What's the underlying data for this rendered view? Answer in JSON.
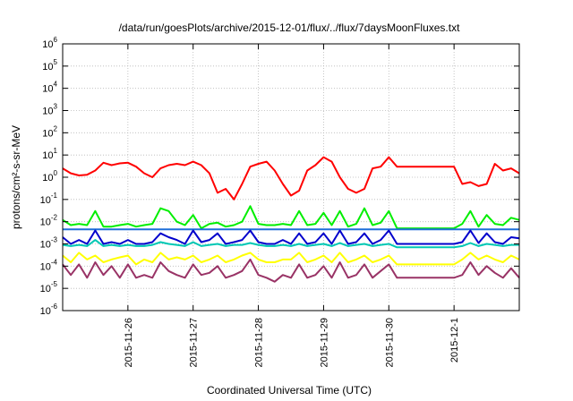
{
  "chart_data": {
    "type": "line",
    "title": "/data/run/goesPlots/archive/2015-12-01/flux/../flux/7daysMoonFluxes.txt",
    "xlabel": "Coordinated Universal Time (UTC)",
    "ylabel": "protons/cm²-s-sr-MeV",
    "yscale": "log",
    "ylim": [
      1e-06,
      1000000.0
    ],
    "xlim": [
      "2015-11-25T00:00",
      "2015-12-02T00:00"
    ],
    "grid": true,
    "x_tick_labels": [
      "2015-11-26",
      "2015-11-27",
      "2015-11-28",
      "2015-11-29",
      "2015-11-30",
      "2015-12-1"
    ],
    "x_tick_dates": [
      "2015-11-26T00:00",
      "2015-11-27T00:00",
      "2015-11-28T00:00",
      "2015-11-29T00:00",
      "2015-11-30T00:00",
      "2015-12-01T00:00"
    ],
    "y_tick_labels": [
      {
        "base": "10",
        "exp": "-6"
      },
      {
        "base": "10",
        "exp": "-5"
      },
      {
        "base": "10",
        "exp": "-4"
      },
      {
        "base": "10",
        "exp": "-3"
      },
      {
        "base": "10",
        "exp": "-2"
      },
      {
        "base": "10",
        "exp": "-1"
      },
      {
        "base": "10",
        "exp": "0"
      },
      {
        "base": "10",
        "exp": "1"
      },
      {
        "base": "10",
        "exp": "2"
      },
      {
        "base": "10",
        "exp": "3"
      },
      {
        "base": "10",
        "exp": "4"
      },
      {
        "base": "10",
        "exp": "5"
      },
      {
        "base": "10",
        "exp": "6"
      }
    ],
    "y_tick_values": [
      1e-06,
      1e-05,
      0.0001,
      0.001,
      0.01,
      0.1,
      1,
      10,
      100,
      1000,
      10000,
      100000,
      1000000
    ],
    "series": [
      {
        "color": "#ff0000",
        "x": [
          "2015-11-25T00:00",
          "2015-11-25T03:00",
          "2015-11-25T06:00",
          "2015-11-25T09:00",
          "2015-11-25T12:00",
          "2015-11-25T15:00",
          "2015-11-25T18:00",
          "2015-11-25T21:00",
          "2015-11-26T00:00",
          "2015-11-26T03:00",
          "2015-11-26T06:00",
          "2015-11-26T09:00",
          "2015-11-26T12:00",
          "2015-11-26T15:00",
          "2015-11-26T18:00",
          "2015-11-26T21:00",
          "2015-11-27T00:00",
          "2015-11-27T03:00",
          "2015-11-27T06:00",
          "2015-11-27T09:00",
          "2015-11-27T12:00",
          "2015-11-27T15:00",
          "2015-11-27T18:00",
          "2015-11-27T21:00",
          "2015-11-28T00:00",
          "2015-11-28T03:00",
          "2015-11-28T06:00",
          "2015-11-28T09:00",
          "2015-11-28T12:00",
          "2015-11-28T15:00",
          "2015-11-28T18:00",
          "2015-11-28T21:00",
          "2015-11-29T00:00",
          "2015-11-29T03:00",
          "2015-11-29T06:00",
          "2015-11-29T09:00",
          "2015-11-29T12:00",
          "2015-11-29T15:00",
          "2015-11-29T18:00",
          "2015-11-29T21:00",
          "2015-11-30T00:00",
          "2015-11-30T03:00",
          "2015-11-30T12:00",
          "2015-11-30T20:00",
          "2015-12-01T00:00",
          "2015-12-01T03:00",
          "2015-12-01T06:00",
          "2015-12-01T09:00",
          "2015-12-01T12:00",
          "2015-12-01T15:00",
          "2015-12-01T18:00",
          "2015-12-01T21:00",
          "2015-12-02T00:00"
        ],
        "values": [
          2.5,
          1.5,
          1.2,
          1.3,
          2.0,
          4.5,
          3.5,
          4.2,
          4.5,
          3.0,
          1.5,
          1.0,
          2.5,
          3.5,
          4.0,
          3.5,
          5.0,
          3.5,
          1.5,
          0.2,
          0.3,
          0.1,
          0.5,
          3.0,
          4.0,
          5.0,
          2.0,
          0.5,
          0.15,
          0.25,
          2.0,
          3.5,
          8.0,
          5.0,
          1.0,
          0.3,
          0.2,
          0.3,
          2.5,
          3.0,
          8.0,
          3.0,
          3.0,
          3.0,
          3.0,
          0.5,
          0.6,
          0.4,
          0.5,
          4.0,
          2.0,
          2.5,
          1.5
        ]
      },
      {
        "color": "#00ee00",
        "x": [
          "2015-11-25T00:00",
          "2015-11-25T03:00",
          "2015-11-25T06:00",
          "2015-11-25T09:00",
          "2015-11-25T12:00",
          "2015-11-25T15:00",
          "2015-11-25T18:00",
          "2015-11-25T21:00",
          "2015-11-26T00:00",
          "2015-11-26T03:00",
          "2015-11-26T06:00",
          "2015-11-26T09:00",
          "2015-11-26T12:00",
          "2015-11-26T15:00",
          "2015-11-26T18:00",
          "2015-11-26T21:00",
          "2015-11-27T00:00",
          "2015-11-27T03:00",
          "2015-11-27T06:00",
          "2015-11-27T09:00",
          "2015-11-27T12:00",
          "2015-11-27T15:00",
          "2015-11-27T18:00",
          "2015-11-27T21:00",
          "2015-11-28T00:00",
          "2015-11-28T03:00",
          "2015-11-28T06:00",
          "2015-11-28T09:00",
          "2015-11-28T12:00",
          "2015-11-28T15:00",
          "2015-11-28T18:00",
          "2015-11-28T21:00",
          "2015-11-29T00:00",
          "2015-11-29T03:00",
          "2015-11-29T06:00",
          "2015-11-29T09:00",
          "2015-11-29T12:00",
          "2015-11-29T15:00",
          "2015-11-29T18:00",
          "2015-11-29T21:00",
          "2015-11-30T00:00",
          "2015-11-30T03:00",
          "2015-11-30T12:00",
          "2015-11-30T20:00",
          "2015-12-01T00:00",
          "2015-12-01T03:00",
          "2015-12-01T06:00",
          "2015-12-01T09:00",
          "2015-12-01T12:00",
          "2015-12-01T15:00",
          "2015-12-01T18:00",
          "2015-12-01T21:00",
          "2015-12-02T00:00"
        ],
        "values": [
          0.012,
          0.007,
          0.008,
          0.007,
          0.03,
          0.006,
          0.006,
          0.007,
          0.008,
          0.006,
          0.007,
          0.008,
          0.04,
          0.03,
          0.01,
          0.007,
          0.02,
          0.005,
          0.008,
          0.009,
          0.006,
          0.007,
          0.01,
          0.05,
          0.008,
          0.007,
          0.007,
          0.008,
          0.007,
          0.03,
          0.007,
          0.008,
          0.025,
          0.007,
          0.03,
          0.006,
          0.008,
          0.04,
          0.007,
          0.009,
          0.03,
          0.005,
          0.005,
          0.005,
          0.005,
          0.008,
          0.03,
          0.006,
          0.02,
          0.008,
          0.007,
          0.015,
          0.012
        ]
      },
      {
        "color": "#1e6fd9",
        "x": [
          "2015-11-25T00:00",
          "2015-11-25T12:00",
          "2015-11-26T00:00",
          "2015-11-26T12:00",
          "2015-11-27T00:00",
          "2015-11-27T12:00",
          "2015-11-28T00:00",
          "2015-11-28T12:00",
          "2015-11-29T00:00",
          "2015-11-29T12:00",
          "2015-11-30T00:00",
          "2015-11-30T12:00",
          "2015-12-01T00:00",
          "2015-12-01T12:00",
          "2015-12-02T00:00"
        ],
        "values": [
          0.0045,
          0.0045,
          0.0045,
          0.0045,
          0.0045,
          0.0045,
          0.0045,
          0.0045,
          0.0045,
          0.0045,
          0.0045,
          0.0045,
          0.0045,
          0.0045,
          0.0045
        ]
      },
      {
        "color": "#0000cc",
        "x": [
          "2015-11-25T00:00",
          "2015-11-25T03:00",
          "2015-11-25T06:00",
          "2015-11-25T09:00",
          "2015-11-25T12:00",
          "2015-11-25T15:00",
          "2015-11-25T18:00",
          "2015-11-25T21:00",
          "2015-11-26T00:00",
          "2015-11-26T03:00",
          "2015-11-26T06:00",
          "2015-11-26T09:00",
          "2015-11-26T12:00",
          "2015-11-26T15:00",
          "2015-11-26T18:00",
          "2015-11-26T21:00",
          "2015-11-27T00:00",
          "2015-11-27T03:00",
          "2015-11-27T06:00",
          "2015-11-27T09:00",
          "2015-11-27T12:00",
          "2015-11-27T15:00",
          "2015-11-27T18:00",
          "2015-11-27T21:00",
          "2015-11-28T00:00",
          "2015-11-28T03:00",
          "2015-11-28T06:00",
          "2015-11-28T09:00",
          "2015-11-28T12:00",
          "2015-11-28T15:00",
          "2015-11-28T18:00",
          "2015-11-28T21:00",
          "2015-11-29T00:00",
          "2015-11-29T03:00",
          "2015-11-29T06:00",
          "2015-11-29T09:00",
          "2015-11-29T12:00",
          "2015-11-29T15:00",
          "2015-11-29T18:00",
          "2015-11-29T21:00",
          "2015-11-30T00:00",
          "2015-11-30T03:00",
          "2015-11-30T12:00",
          "2015-11-30T20:00",
          "2015-12-01T00:00",
          "2015-12-01T03:00",
          "2015-12-01T06:00",
          "2015-12-01T09:00",
          "2015-12-01T12:00",
          "2015-12-01T15:00",
          "2015-12-01T18:00",
          "2015-12-01T21:00",
          "2015-12-02T00:00"
        ],
        "values": [
          0.002,
          0.001,
          0.0015,
          0.001,
          0.004,
          0.001,
          0.0012,
          0.001,
          0.0015,
          0.001,
          0.001,
          0.0012,
          0.003,
          0.002,
          0.0015,
          0.001,
          0.004,
          0.0012,
          0.0015,
          0.003,
          0.001,
          0.0012,
          0.0015,
          0.004,
          0.0012,
          0.001,
          0.001,
          0.0015,
          0.001,
          0.003,
          0.001,
          0.0012,
          0.003,
          0.001,
          0.004,
          0.001,
          0.0012,
          0.003,
          0.001,
          0.0015,
          0.004,
          0.001,
          0.001,
          0.001,
          0.001,
          0.0012,
          0.004,
          0.0011,
          0.003,
          0.0012,
          0.001,
          0.002,
          0.0018
        ]
      },
      {
        "color": "#00c8b4",
        "x": [
          "2015-11-25T00:00",
          "2015-11-25T03:00",
          "2015-11-25T06:00",
          "2015-11-25T09:00",
          "2015-11-25T12:00",
          "2015-11-25T15:00",
          "2015-11-25T18:00",
          "2015-11-25T21:00",
          "2015-11-26T00:00",
          "2015-11-26T03:00",
          "2015-11-26T06:00",
          "2015-11-26T09:00",
          "2015-11-26T12:00",
          "2015-11-26T15:00",
          "2015-11-26T18:00",
          "2015-11-26T21:00",
          "2015-11-27T00:00",
          "2015-11-27T03:00",
          "2015-11-27T06:00",
          "2015-11-27T09:00",
          "2015-11-27T12:00",
          "2015-11-27T15:00",
          "2015-11-27T18:00",
          "2015-11-27T21:00",
          "2015-11-28T00:00",
          "2015-11-28T03:00",
          "2015-11-28T06:00",
          "2015-11-28T09:00",
          "2015-11-28T12:00",
          "2015-11-28T15:00",
          "2015-11-28T18:00",
          "2015-11-28T21:00",
          "2015-11-29T00:00",
          "2015-11-29T03:00",
          "2015-11-29T06:00",
          "2015-11-29T09:00",
          "2015-11-29T12:00",
          "2015-11-29T15:00",
          "2015-11-29T18:00",
          "2015-11-29T21:00",
          "2015-11-30T00:00",
          "2015-11-30T03:00",
          "2015-11-30T12:00",
          "2015-11-30T20:00",
          "2015-12-01T00:00",
          "2015-12-01T03:00",
          "2015-12-01T06:00",
          "2015-12-01T09:00",
          "2015-12-01T12:00",
          "2015-12-01T15:00",
          "2015-12-01T18:00",
          "2015-12-01T21:00",
          "2015-12-02T00:00"
        ],
        "values": [
          0.0009,
          0.0008,
          0.0009,
          0.0008,
          0.0015,
          0.0008,
          0.0009,
          0.0008,
          0.0009,
          0.0008,
          0.0008,
          0.0009,
          0.0012,
          0.001,
          0.0009,
          0.0008,
          0.0012,
          0.0008,
          0.0009,
          0.001,
          0.0008,
          0.0009,
          0.0009,
          0.0011,
          0.0009,
          0.0008,
          0.0008,
          0.0009,
          0.0008,
          0.001,
          0.0008,
          0.0009,
          0.001,
          0.0008,
          0.0011,
          0.0008,
          0.0009,
          0.001,
          0.0008,
          0.0009,
          0.001,
          0.0007,
          0.0007,
          0.0007,
          0.0007,
          0.0008,
          0.0011,
          0.0008,
          0.001,
          0.0009,
          0.0008,
          0.0009,
          0.0009
        ]
      },
      {
        "color": "#ffff00",
        "x": [
          "2015-11-25T00:00",
          "2015-11-25T03:00",
          "2015-11-25T06:00",
          "2015-11-25T09:00",
          "2015-11-25T12:00",
          "2015-11-25T15:00",
          "2015-11-25T18:00",
          "2015-11-25T21:00",
          "2015-11-26T00:00",
          "2015-11-26T03:00",
          "2015-11-26T06:00",
          "2015-11-26T09:00",
          "2015-11-26T12:00",
          "2015-11-26T15:00",
          "2015-11-26T18:00",
          "2015-11-26T21:00",
          "2015-11-27T00:00",
          "2015-11-27T03:00",
          "2015-11-27T06:00",
          "2015-11-27T09:00",
          "2015-11-27T12:00",
          "2015-11-27T15:00",
          "2015-11-27T18:00",
          "2015-11-27T21:00",
          "2015-11-28T00:00",
          "2015-11-28T03:00",
          "2015-11-28T06:00",
          "2015-11-28T09:00",
          "2015-11-28T12:00",
          "2015-11-28T15:00",
          "2015-11-28T18:00",
          "2015-11-28T21:00",
          "2015-11-29T00:00",
          "2015-11-29T03:00",
          "2015-11-29T06:00",
          "2015-11-29T09:00",
          "2015-11-29T12:00",
          "2015-11-29T15:00",
          "2015-11-29T18:00",
          "2015-11-29T21:00",
          "2015-11-30T00:00",
          "2015-11-30T03:00",
          "2015-11-30T12:00",
          "2015-11-30T20:00",
          "2015-12-01T00:00",
          "2015-12-01T03:00",
          "2015-12-01T06:00",
          "2015-12-01T09:00",
          "2015-12-01T12:00",
          "2015-12-01T15:00",
          "2015-12-01T18:00",
          "2015-12-01T21:00",
          "2015-12-02T00:00"
        ],
        "values": [
          0.0003,
          0.00015,
          0.0004,
          0.0002,
          0.0003,
          0.00015,
          0.0002,
          0.00025,
          0.0003,
          0.00012,
          0.0002,
          0.00015,
          0.0004,
          0.0002,
          0.00025,
          0.0002,
          0.0003,
          0.00015,
          0.0002,
          0.0003,
          0.00015,
          0.0002,
          0.0003,
          0.0004,
          0.0002,
          0.00015,
          0.00015,
          0.0002,
          0.0002,
          0.0004,
          0.00015,
          0.0002,
          0.0003,
          0.00015,
          0.0004,
          0.00015,
          0.0002,
          0.0003,
          0.00015,
          0.0002,
          0.0003,
          0.00012,
          0.00012,
          0.00012,
          0.00012,
          0.0002,
          0.0004,
          0.0002,
          0.0003,
          0.0002,
          0.00015,
          0.0003,
          0.0002
        ]
      },
      {
        "color": "#993366",
        "x": [
          "2015-11-25T00:00",
          "2015-11-25T03:00",
          "2015-11-25T06:00",
          "2015-11-25T09:00",
          "2015-11-25T12:00",
          "2015-11-25T15:00",
          "2015-11-25T18:00",
          "2015-11-25T21:00",
          "2015-11-26T00:00",
          "2015-11-26T03:00",
          "2015-11-26T06:00",
          "2015-11-26T09:00",
          "2015-11-26T12:00",
          "2015-11-26T15:00",
          "2015-11-26T18:00",
          "2015-11-26T21:00",
          "2015-11-27T00:00",
          "2015-11-27T03:00",
          "2015-11-27T06:00",
          "2015-11-27T09:00",
          "2015-11-27T12:00",
          "2015-11-27T15:00",
          "2015-11-27T18:00",
          "2015-11-27T21:00",
          "2015-11-28T00:00",
          "2015-11-28T03:00",
          "2015-11-28T06:00",
          "2015-11-28T09:00",
          "2015-11-28T12:00",
          "2015-11-28T15:00",
          "2015-11-28T18:00",
          "2015-11-28T21:00",
          "2015-11-29T00:00",
          "2015-11-29T03:00",
          "2015-11-29T06:00",
          "2015-11-29T09:00",
          "2015-11-29T12:00",
          "2015-11-29T15:00",
          "2015-11-29T18:00",
          "2015-11-29T21:00",
          "2015-11-30T00:00",
          "2015-11-30T03:00",
          "2015-11-30T12:00",
          "2015-11-30T20:00",
          "2015-12-01T00:00",
          "2015-12-01T03:00",
          "2015-12-01T06:00",
          "2015-12-01T09:00",
          "2015-12-01T12:00",
          "2015-12-01T15:00",
          "2015-12-01T18:00",
          "2015-12-01T21:00",
          "2015-12-02T00:00"
        ],
        "values": [
          0.00012,
          4e-05,
          0.00012,
          3e-05,
          0.00015,
          4e-05,
          0.0001,
          3e-05,
          0.00012,
          3e-05,
          4e-05,
          3e-05,
          0.00015,
          6e-05,
          4e-05,
          3e-05,
          0.00012,
          4e-05,
          5e-05,
          0.0001,
          3e-05,
          4e-05,
          6e-05,
          0.0002,
          4e-05,
          3e-05,
          2e-05,
          4e-05,
          3e-05,
          0.00012,
          3e-05,
          4e-05,
          0.0001,
          3e-05,
          0.00015,
          3e-05,
          4e-05,
          0.00012,
          3e-05,
          6e-05,
          0.00012,
          3e-05,
          3e-05,
          3e-05,
          3e-05,
          4e-05,
          0.00015,
          4e-05,
          0.0001,
          5e-05,
          3e-05,
          8e-05,
          3e-05
        ]
      }
    ]
  }
}
